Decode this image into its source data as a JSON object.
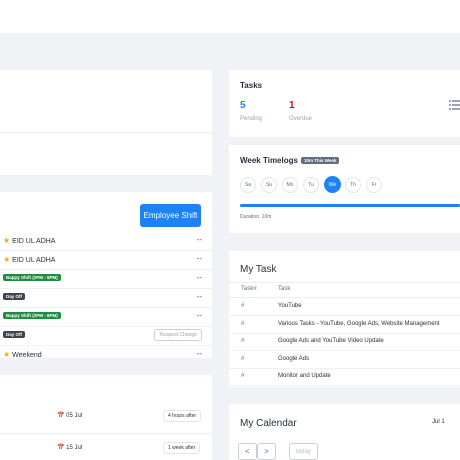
{
  "shift": {
    "button_label": "Employee Shift",
    "rows": [
      {
        "type": "holiday",
        "label": "EID UL ADHA",
        "action": "--"
      },
      {
        "type": "holiday",
        "label": "EID UL ADHA",
        "action": "--"
      },
      {
        "type": "shift",
        "label": "Bappy Shift (2PM - 6PM)",
        "action": "--"
      },
      {
        "type": "off",
        "label": "Day Off",
        "action": "--"
      },
      {
        "type": "shift",
        "label": "Bappy Shift (2PM - 6PM)",
        "action": "--"
      },
      {
        "type": "off",
        "label": "Day Off",
        "action": "Request Change"
      },
      {
        "type": "holiday",
        "label": "Weekend",
        "action": "--"
      }
    ]
  },
  "events": [
    {
      "date": "05 Jul",
      "relative": "4 hours after"
    },
    {
      "date": "15 Jul",
      "relative": "1 week after"
    }
  ],
  "tasks": {
    "title": "Tasks",
    "pending_count": "5",
    "pending_label": "Pending",
    "overdue_count": "1",
    "overdue_label": "Overdue"
  },
  "timelogs": {
    "title": "Week Timelogs",
    "badge": "10m This Week",
    "days": [
      "Sa",
      "Su",
      "Mo",
      "Tu",
      "We",
      "Th",
      "Fr"
    ],
    "active_day": "We",
    "duration_label": "Duration: 10m"
  },
  "my_task": {
    "title": "My Task",
    "col_num": "Task#",
    "col_task": "Task",
    "rows": [
      {
        "num": "#",
        "name": "YouTube"
      },
      {
        "num": "#",
        "name": "Various Tasks - YouTube, Google Ads, Website Management"
      },
      {
        "num": "#",
        "name": "Google Ads and YouTube Video Update"
      },
      {
        "num": "#",
        "name": "Google Ads"
      },
      {
        "num": "#",
        "name": "Monitor and Update"
      }
    ]
  },
  "calendar": {
    "title": "My Calendar",
    "prev": "<",
    "next": ">",
    "today": "today",
    "month_label": "Jul 1"
  },
  "colors": {
    "accent": "#1d82f5",
    "overdue": "#d21010",
    "green": "#1e8e3e"
  }
}
